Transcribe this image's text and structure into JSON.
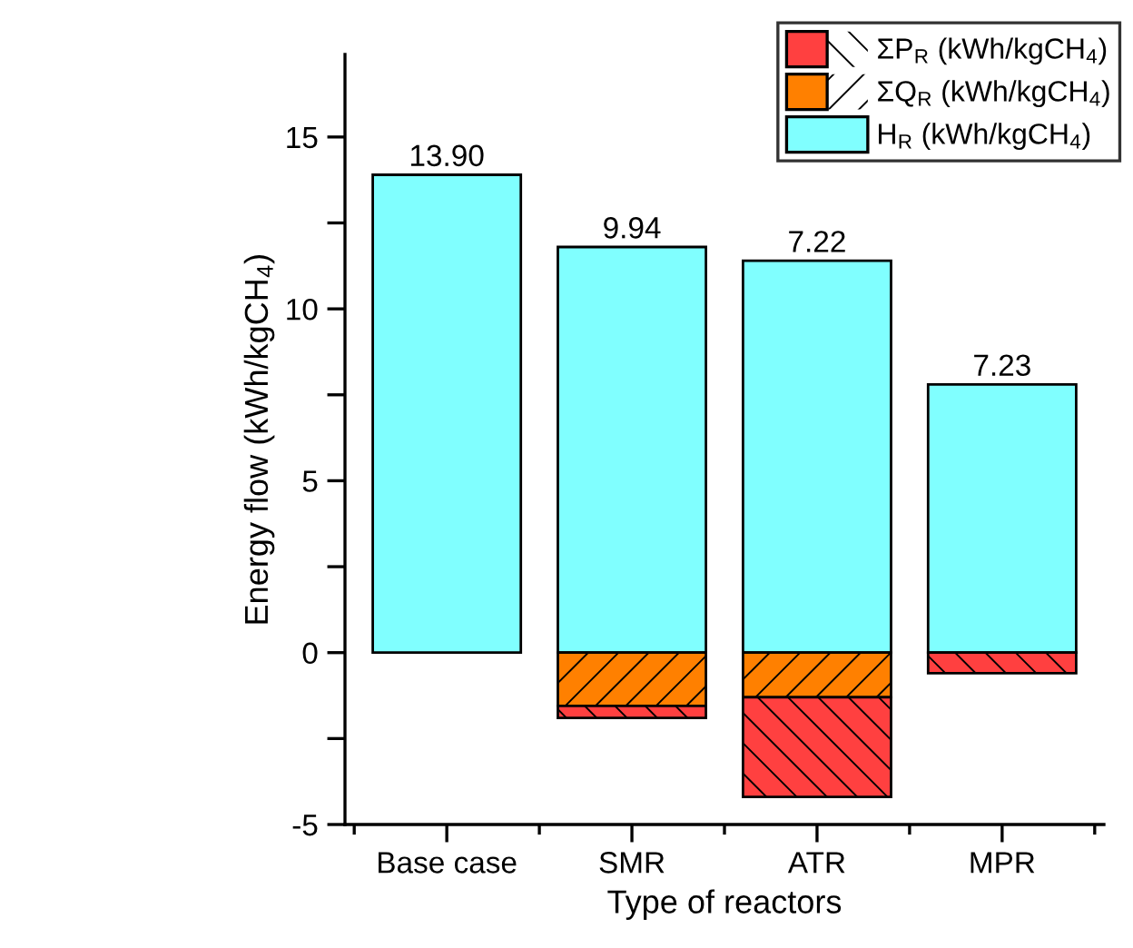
{
  "chart_data": {
    "type": "bar",
    "stacked": true,
    "xlabel": "Type of reactors",
    "ylabel": "Energy flow (kWh/kgCH$_{4}$)",
    "categories": [
      "Base case",
      "SMR",
      "ATR",
      "MPR"
    ],
    "series": [
      {
        "name": "H$_{R}$ (kWh/kgCH$_{4}$)",
        "color": "#80ffff",
        "values": [
          13.9,
          11.8,
          11.4,
          7.8
        ]
      },
      {
        "name": "ΣQ$_{R}$ (kWh/kgCH$_{4}$)",
        "color": "#ff8000",
        "values": [
          null,
          -1.55,
          -1.3,
          null
        ]
      },
      {
        "name": "ΣP$_{R}$ (kWh/kgCH$_{4}$)",
        "color": "#ff4040",
        "values": [
          null,
          -0.35,
          -2.9,
          -0.6
        ]
      }
    ],
    "annotations": [
      {
        "text": "13.90",
        "x": "Base case",
        "y": 13.9
      },
      {
        "text": "9.94",
        "x": "SMR",
        "y": 11.8
      },
      {
        "text": "7.22",
        "x": "ATR",
        "y": 11.4
      },
      {
        "text": "7.23",
        "x": "MPR",
        "y": 7.8
      }
    ],
    "ylim": [
      -5,
      17.4
    ],
    "yticks": [
      -5,
      {
        "value": -2.5,
        "label": null
      },
      0,
      {
        "value": 2.5,
        "label": null
      },
      5,
      {
        "value": 7.5,
        "label": null
      },
      10,
      {
        "value": 12.5,
        "label": null
      },
      15
    ],
    "grid": false,
    "legend": "top right"
  }
}
